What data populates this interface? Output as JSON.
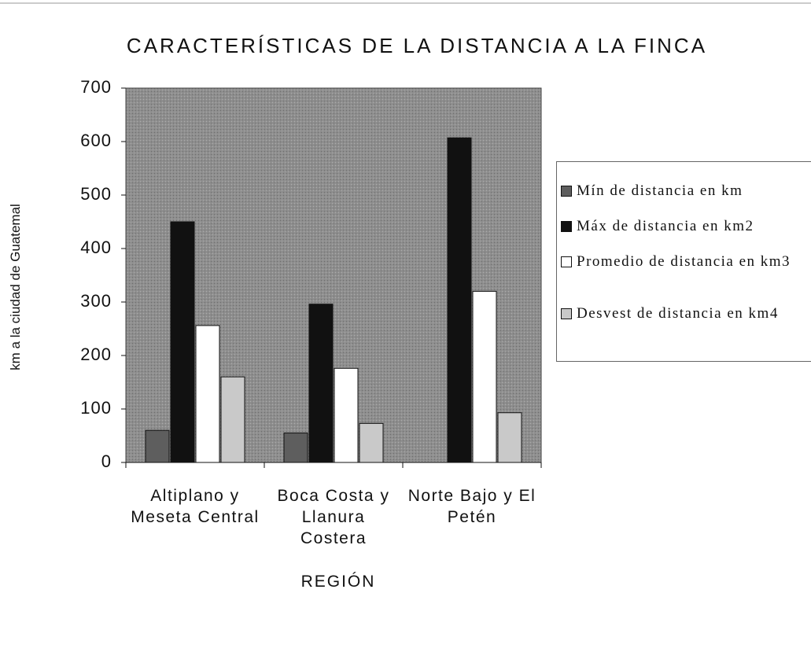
{
  "chart_data": {
    "type": "bar",
    "title": "CARACTERÍSTICAS DE LA DISTANCIA A LA FINCA",
    "x_label": "REGIÓN",
    "y_label": "km a la ciudad de Guatemal",
    "categories": [
      "Altiplano y Meseta Central",
      "Boca Costa y Llanura Costera",
      "Norte Bajo y El Petén"
    ],
    "series": [
      {
        "name": "Mín de distancia en km",
        "color": "#5e5e5e",
        "values": [
          60,
          55,
          0
        ]
      },
      {
        "name": "Máx de distancia en km2",
        "color": "#111111",
        "values": [
          450,
          296,
          607
        ]
      },
      {
        "name": "Promedio de distancia en km3",
        "color": "#ffffff",
        "values": [
          256,
          176,
          320
        ]
      },
      {
        "name": "Desvest de distancia en km4",
        "color": "#c9c9c9",
        "values": [
          160,
          73,
          93
        ]
      }
    ],
    "ylim": [
      0,
      700
    ],
    "yticks": [
      0,
      100,
      200,
      300,
      400,
      500,
      600,
      700
    ],
    "legend": "right"
  }
}
